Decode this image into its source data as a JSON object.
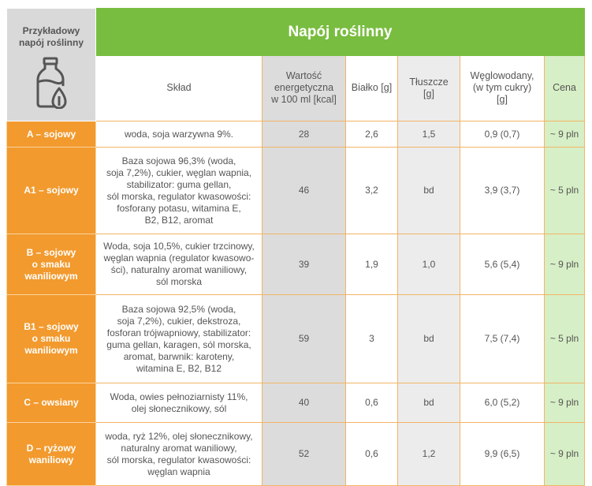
{
  "corner_label": "Przykładowy\nnapój roślinny",
  "title": "Napój roślinny",
  "headers": [
    "Skład",
    "Wartość\nenergetyczna\nw 100 ml [kcal]",
    "Białko [g]",
    "Tłuszcze\n[g]",
    "Węglowodany,\n(w tym cukry)\n[g]",
    "Cena"
  ],
  "colors": {
    "orange": "#f29a2e",
    "green": "#79bd40",
    "price_bg": "#d7efc6",
    "energy_bg": "#dcdcdc"
  },
  "rows": [
    {
      "name": "A – sojowy",
      "sklad": "woda, soja warzywna 9%.",
      "energy": "28",
      "protein": "2,6",
      "fat": "1,5",
      "carbs": "0,9 (0,7)",
      "price": "~ 9 pln"
    },
    {
      "name": "A1 – sojowy",
      "sklad": "Baza sojowa 96,3% (woda,\nsoja 7,2%), cukier, węglan wapnia,\nstabilizator: guma gellan,\nsól morska, regulator kwasowości:\nfosforany potasu, witamina E,\nB2, B12, aromat",
      "energy": "46",
      "protein": "3,2",
      "fat": "bd",
      "carbs": "3,9 (3,7)",
      "price": "~ 5 pln"
    },
    {
      "name": "B – sojowy\no smaku\nwaniliowym",
      "sklad": "Woda, soja 10,5%, cukier trzcinowy,\nwęglan wapnia (regulator kwasowo-\nści), naturalny aromat waniliowy,\nsól morska",
      "energy": "39",
      "protein": "1,9",
      "fat": "1,0",
      "carbs": "5,6  (5,4)",
      "price": "~ 9 pln"
    },
    {
      "name": "B1 – sojowy\no smaku\nwaniliowym",
      "sklad": "Baza sojowa 92,5% (woda,\nsoja 7,2%), cukier, dekstroza,\nfosforan trójwapniowy, stabilizator:\nguma gellan, karagen, sól morska,\naromat, barwnik: karoteny,\nwitamina E, B2, B12",
      "energy": "59",
      "protein": "3",
      "fat": "bd",
      "carbs": "7,5 (7,4)",
      "price": "~ 5 pln"
    },
    {
      "name": "C – owsiany",
      "sklad": "Woda, owies pełnoziarnisty 11%,\nolej słonecznikowy, sól",
      "energy": "40",
      "protein": "0,6",
      "fat": "bd",
      "carbs": "6,0 (5,2)",
      "price": "~ 9 pln"
    },
    {
      "name": "D – ryżowy\nwaniliowy",
      "sklad": "woda, ryż 12%, olej słonecznikowy,\nnaturalny aromat waniliowy,\nsól morska, regulator kwasowości:\nwęglan wapnia",
      "energy": "52",
      "protein": "0,6",
      "fat": "1,2",
      "carbs": "9,9 (6,5)",
      "price": "~ 9 pln"
    }
  ]
}
